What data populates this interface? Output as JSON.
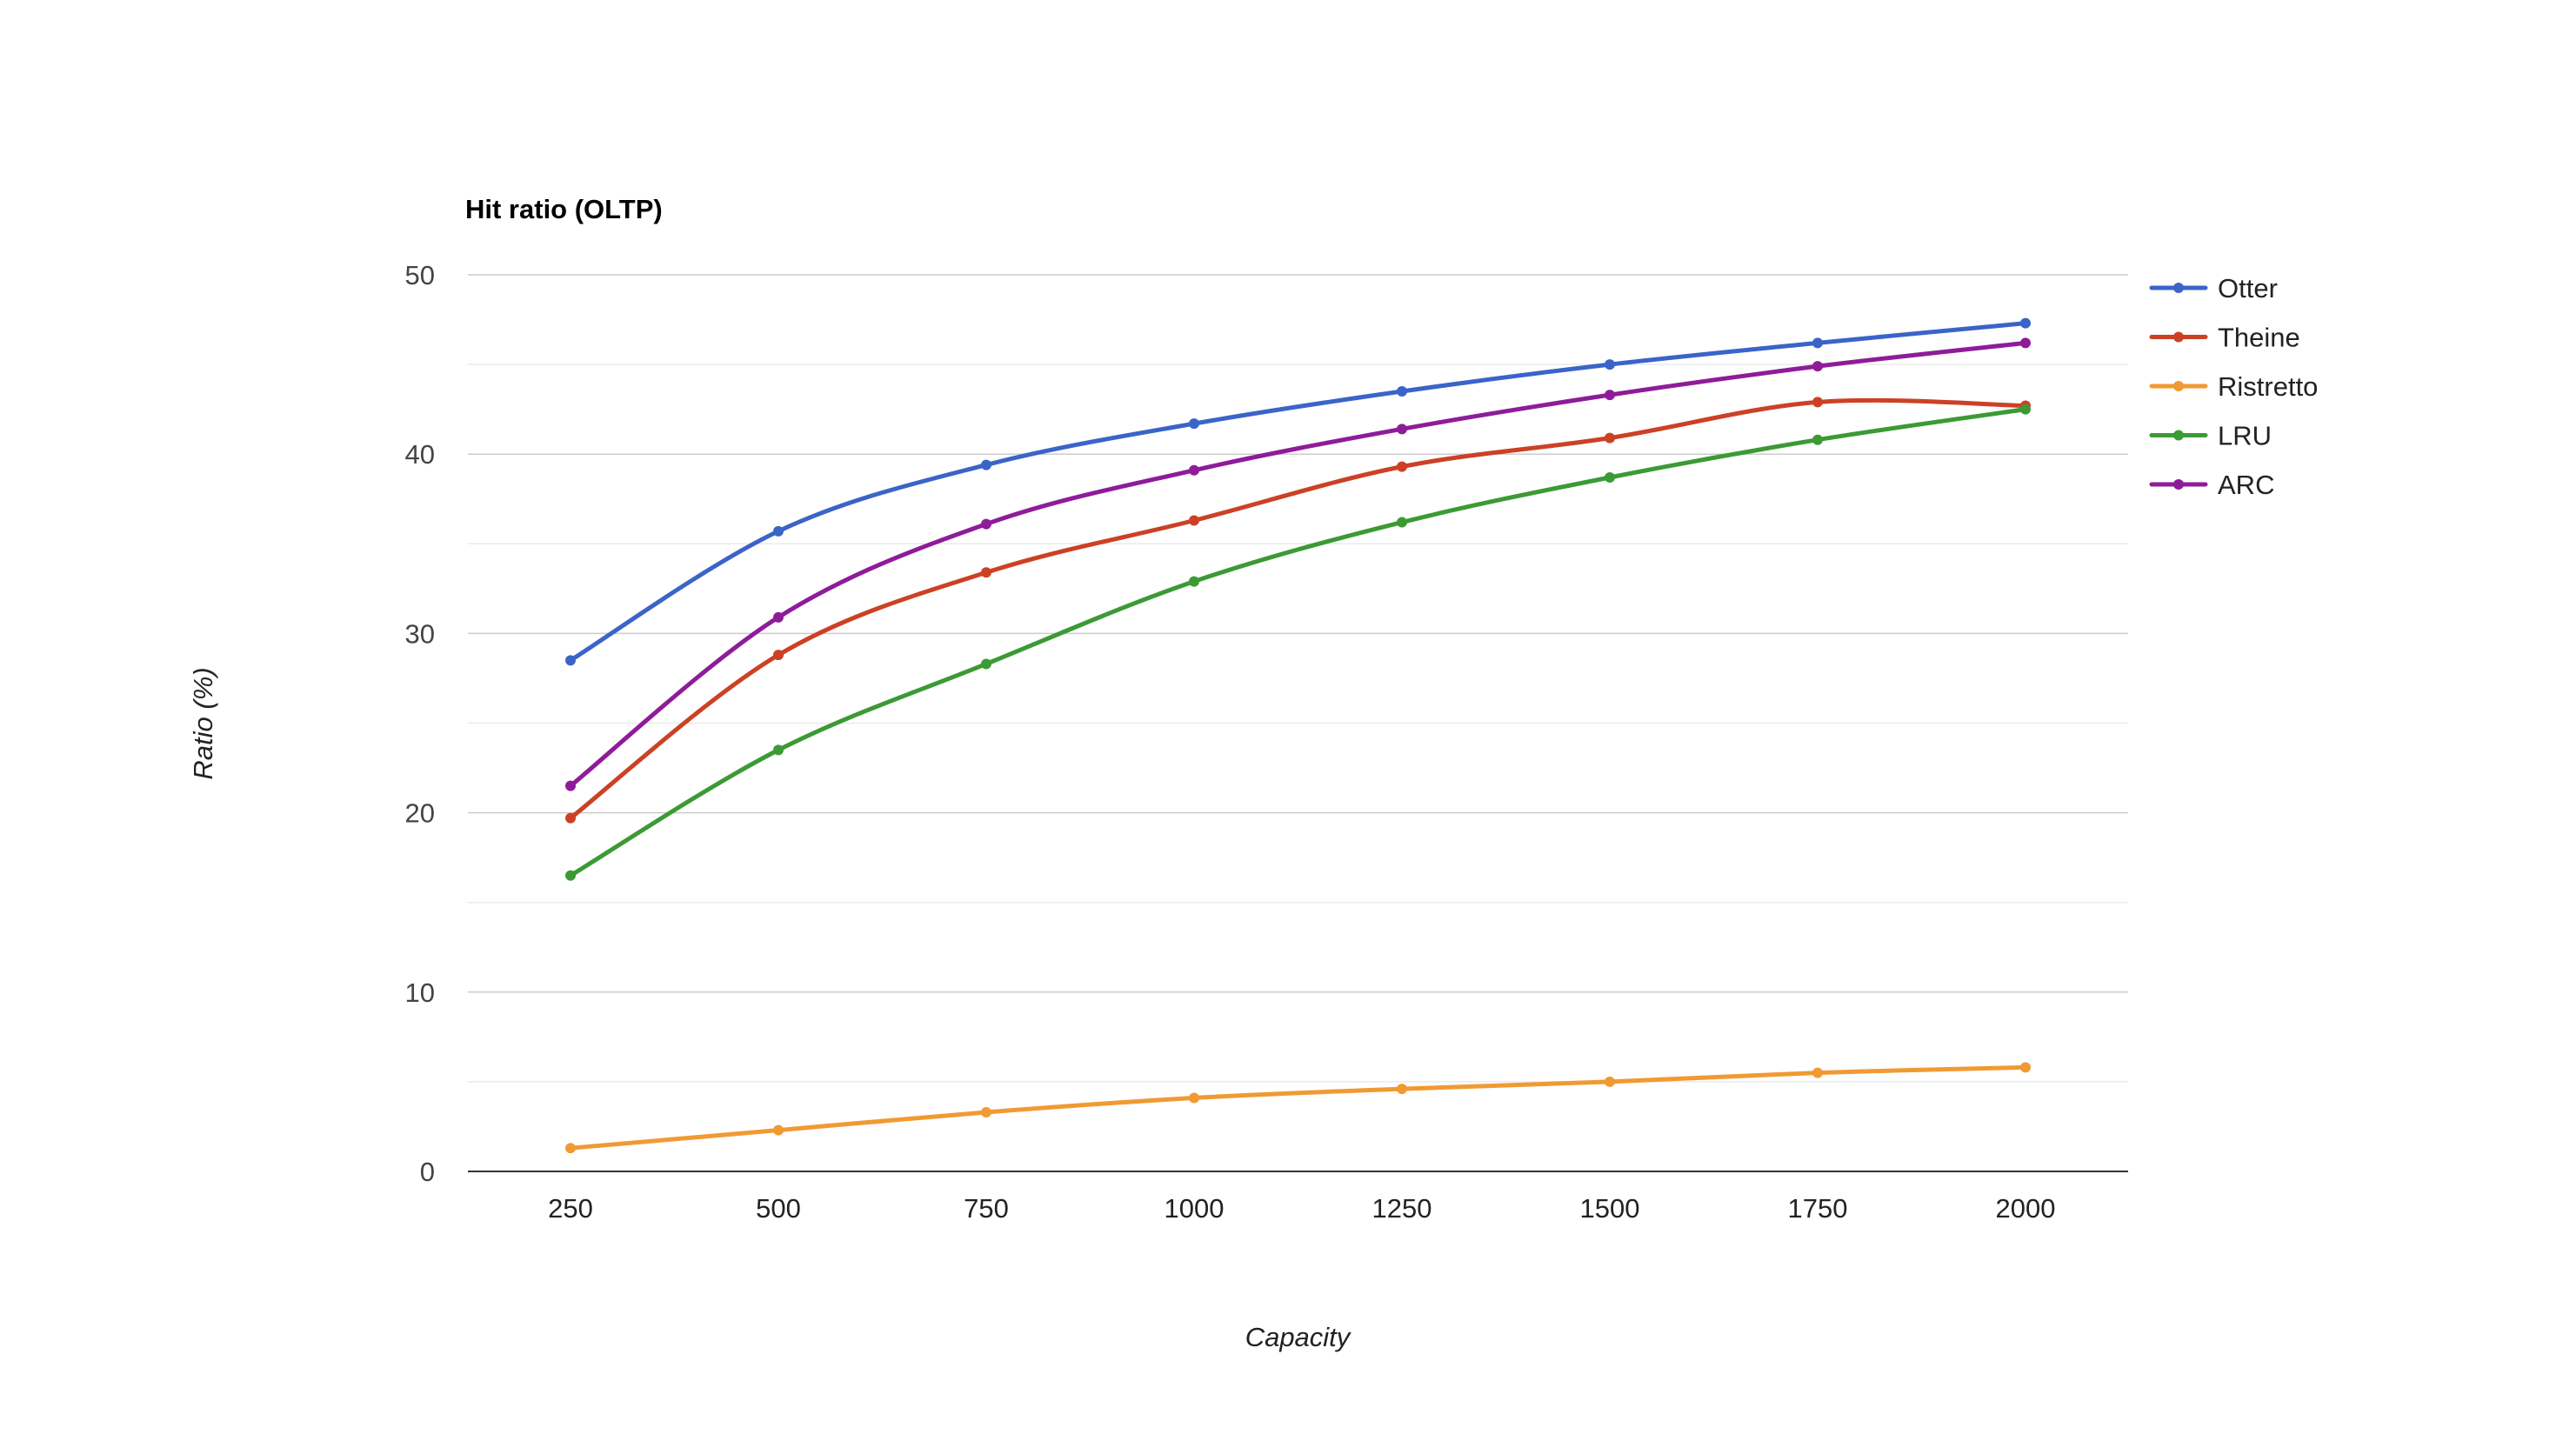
{
  "chart_data": {
    "type": "line",
    "title": "Hit ratio (OLTP)",
    "xlabel": "Capacity",
    "ylabel": "Ratio (%)",
    "categories": [
      "250",
      "500",
      "750",
      "1000",
      "1250",
      "1500",
      "1750",
      "2000"
    ],
    "ylim": [
      0,
      50
    ],
    "yticks": [
      "0",
      "10",
      "20",
      "30",
      "40",
      "50"
    ],
    "grid": true,
    "smooth": true,
    "legend_position": "right",
    "series": [
      {
        "name": "Otter",
        "color": "#3b64c8",
        "values": [
          28.5,
          35.7,
          39.4,
          41.7,
          43.5,
          45.0,
          46.2,
          47.3
        ]
      },
      {
        "name": "Theine",
        "color": "#cc4125",
        "values": [
          19.7,
          28.8,
          33.4,
          36.3,
          39.3,
          40.9,
          42.9,
          42.7
        ]
      },
      {
        "name": "Ristretto",
        "color": "#f09a33",
        "values": [
          1.3,
          2.3,
          3.3,
          4.1,
          4.6,
          5.0,
          5.5,
          5.8
        ]
      },
      {
        "name": "LRU",
        "color": "#3c9a35",
        "values": [
          16.5,
          23.5,
          28.3,
          32.9,
          36.2,
          38.7,
          40.8,
          42.5
        ]
      },
      {
        "name": "ARC",
        "color": "#8e1c9a",
        "values": [
          21.5,
          30.9,
          36.1,
          39.1,
          41.4,
          43.3,
          44.9,
          46.2
        ]
      }
    ]
  }
}
